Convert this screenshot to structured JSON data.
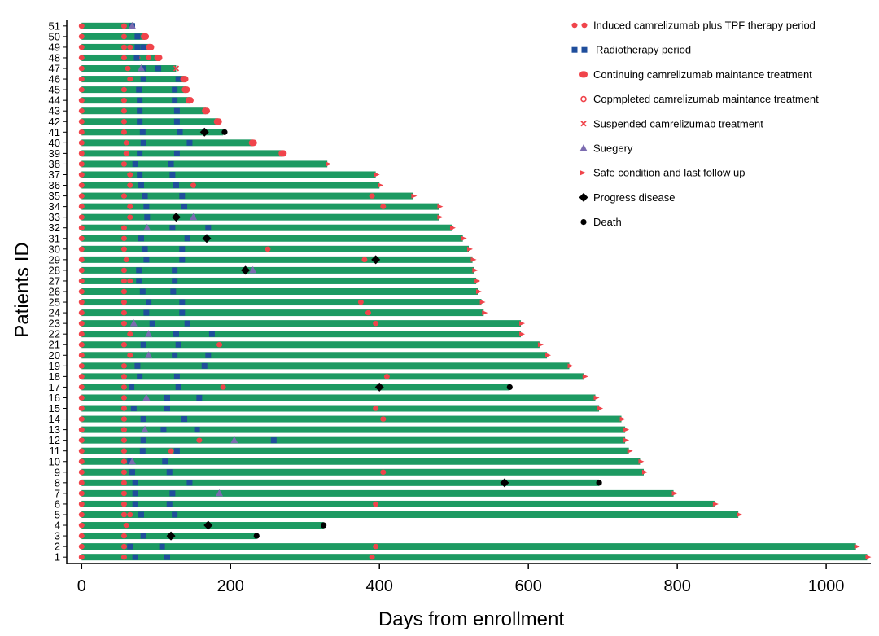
{
  "chart_data": {
    "type": "swimmer",
    "xlabel": "Days from enrollment",
    "ylabel": "Patients ID",
    "xlim": [
      -20,
      1060
    ],
    "ylim": [
      0.4,
      51.6
    ],
    "xticks": [
      0,
      200,
      400,
      600,
      800,
      1000
    ],
    "colors": {
      "bar": "#1d9a62",
      "tpf": "#f0444b",
      "radio": "#1f4e9c",
      "surgery": "#7b6bb0",
      "progress": "#000000",
      "death": "#000000",
      "suspended": "#f0444b"
    },
    "legend": [
      {
        "key": "tpf",
        "label": "Induced camrelizumab plus TPF therapy period"
      },
      {
        "key": "radio",
        "label": "Radiotherapy period"
      },
      {
        "key": "continuing",
        "label": "Continuing camrelizumab maintance treatment"
      },
      {
        "key": "completed",
        "label": "Copmpleted camrelizumab maintance treatment"
      },
      {
        "key": "suspended",
        "label": "Suspended camrelizumab treatment"
      },
      {
        "key": "surgery",
        "label": "Suegery"
      },
      {
        "key": "safe",
        "label": "Safe condition and last follow up"
      },
      {
        "key": "progress",
        "label": "Progress disease"
      },
      {
        "key": "death",
        "label": "Death"
      }
    ],
    "patients": [
      {
        "id": "1",
        "end": 1055,
        "tpf": [
          0,
          57
        ],
        "radio": [
          72,
          115
        ],
        "extra_red": [
          390
        ],
        "end_marker": "safe"
      },
      {
        "id": "2",
        "end": 1040,
        "tpf": [
          0,
          57
        ],
        "radio": [
          65,
          108
        ],
        "extra_red": [
          395
        ],
        "end_marker": "safe"
      },
      {
        "id": "3",
        "end": 235,
        "tpf": [
          0,
          57
        ],
        "radio": [
          83
        ],
        "progress": 120,
        "death": 235
      },
      {
        "id": "4",
        "end": 325,
        "tpf": [
          0,
          60
        ],
        "progress": 170,
        "death": 325
      },
      {
        "id": "5",
        "end": 882,
        "tpf": [
          0,
          57,
          65
        ],
        "radio": [
          80,
          125
        ],
        "end_marker": "safe"
      },
      {
        "id": "6",
        "end": 850,
        "tpf": [
          0,
          57
        ],
        "radio": [
          72,
          118
        ],
        "extra_red": [
          395
        ],
        "end_marker": "safe"
      },
      {
        "id": "7",
        "end": 795,
        "tpf": [
          0,
          57
        ],
        "radio": [
          72,
          122
        ],
        "surgery": [
          185
        ],
        "end_marker": "safe"
      },
      {
        "id": "8",
        "end": 695,
        "tpf": [
          0,
          57
        ],
        "radio": [
          72,
          145
        ],
        "progress": 568,
        "death": 695
      },
      {
        "id": "9",
        "end": 755,
        "tpf": [
          0,
          57
        ],
        "radio": [
          68,
          118
        ],
        "extra_red": [
          405
        ],
        "end_marker": "safe"
      },
      {
        "id": "10",
        "end": 750,
        "tpf": [
          0,
          57
        ],
        "radio": [
          65,
          112
        ],
        "surgery": [
          68
        ],
        "end_marker": "safe"
      },
      {
        "id": "11",
        "end": 735,
        "tpf": [
          0,
          57
        ],
        "radio": [
          82,
          128
        ],
        "extra_red": [
          120
        ],
        "end_marker": "safe"
      },
      {
        "id": "12",
        "end": 730,
        "tpf": [
          0,
          57
        ],
        "radio": [
          83,
          258
        ],
        "surgery": [
          205
        ],
        "extra_red": [
          158
        ],
        "end_marker": "safe"
      },
      {
        "id": "13",
        "end": 730,
        "tpf": [
          0,
          57
        ],
        "radio": [
          110,
          155
        ],
        "surgery": [
          85
        ],
        "end_marker": "safe"
      },
      {
        "id": "14",
        "end": 725,
        "tpf": [
          0,
          57
        ],
        "radio": [
          83,
          138
        ],
        "extra_red": [
          405
        ],
        "end_marker": "safe"
      },
      {
        "id": "15",
        "end": 695,
        "tpf": [
          0,
          57
        ],
        "radio": [
          70,
          115
        ],
        "extra_red": [
          395
        ],
        "end_marker": "safe"
      },
      {
        "id": "16",
        "end": 690,
        "tpf": [
          0,
          57
        ],
        "radio": [
          115,
          158
        ],
        "surgery": [
          87
        ],
        "end_marker": "safe"
      },
      {
        "id": "17",
        "end": 575,
        "tpf": [
          0,
          57,
          190
        ],
        "radio": [
          67,
          130
        ],
        "progress": 400,
        "death": 575
      },
      {
        "id": "18",
        "end": 675,
        "tpf": [
          0,
          57
        ],
        "radio": [
          78,
          128
        ],
        "extra_red": [
          410
        ],
        "end_marker": "safe"
      },
      {
        "id": "19",
        "end": 655,
        "tpf": [
          0,
          57
        ],
        "radio": [
          75,
          165
        ],
        "end_marker": "safe"
      },
      {
        "id": "20",
        "end": 625,
        "tpf": [
          0,
          65
        ],
        "radio": [
          125,
          170
        ],
        "surgery": [
          90
        ],
        "end_marker": "safe"
      },
      {
        "id": "21",
        "end": 615,
        "tpf": [
          0,
          57
        ],
        "radio": [
          83,
          130
        ],
        "extra_red": [
          185
        ],
        "end_marker": "safe"
      },
      {
        "id": "22",
        "end": 590,
        "tpf": [
          0,
          65
        ],
        "radio": [
          127,
          175
        ],
        "surgery": [
          90
        ],
        "end_marker": "safe"
      },
      {
        "id": "23",
        "end": 590,
        "tpf": [
          0,
          57
        ],
        "radio": [
          95,
          142
        ],
        "surgery": [
          70
        ],
        "extra_red": [
          395
        ],
        "end_marker": "safe"
      },
      {
        "id": "24",
        "end": 540,
        "tpf": [
          0,
          57
        ],
        "radio": [
          87,
          135
        ],
        "extra_red": [
          385
        ],
        "end_marker": "safe"
      },
      {
        "id": "25",
        "end": 537,
        "tpf": [
          0,
          57
        ],
        "radio": [
          90,
          135
        ],
        "extra_red": [
          375
        ],
        "end_marker": "safe"
      },
      {
        "id": "26",
        "end": 532,
        "tpf": [
          0,
          57
        ],
        "radio": [
          82,
          123
        ],
        "end_marker": "safe"
      },
      {
        "id": "27",
        "end": 530,
        "tpf": [
          0,
          57,
          65
        ],
        "radio": [
          77,
          125
        ],
        "end_marker": "safe"
      },
      {
        "id": "28",
        "end": 527,
        "tpf": [
          0,
          57
        ],
        "radio": [
          77,
          125
        ],
        "surgery": [
          230
        ],
        "progress": 220,
        "end_marker": "safe"
      },
      {
        "id": "29",
        "end": 525,
        "tpf": [
          0,
          60
        ],
        "radio": [
          87,
          135
        ],
        "extra_red": [
          380
        ],
        "progress": 395,
        "end_marker": "safe"
      },
      {
        "id": "30",
        "end": 520,
        "tpf": [
          0,
          57
        ],
        "radio": [
          85,
          135
        ],
        "extra_red": [
          250
        ],
        "end_marker": "safe"
      },
      {
        "id": "31",
        "end": 512,
        "tpf": [
          0,
          57
        ],
        "radio": [
          80,
          142
        ],
        "progress": 168,
        "end_marker": "safe"
      },
      {
        "id": "32",
        "end": 497,
        "tpf": [
          0,
          57
        ],
        "radio": [
          122,
          170
        ],
        "surgery": [
          88
        ],
        "end_marker": "safe"
      },
      {
        "id": "33",
        "end": 480,
        "tpf": [
          0,
          65
        ],
        "radio": [
          88
        ],
        "surgery": [
          150
        ],
        "progress": 127,
        "end_marker": "safe"
      },
      {
        "id": "34",
        "end": 480,
        "tpf": [
          0,
          65
        ],
        "radio": [
          87,
          138
        ],
        "extra_red": [
          405
        ],
        "end_marker": "safe"
      },
      {
        "id": "35",
        "end": 445,
        "tpf": [
          0,
          57
        ],
        "radio": [
          85,
          135
        ],
        "extra_red": [
          390
        ],
        "end_marker": "safe"
      },
      {
        "id": "36",
        "end": 400,
        "tpf": [
          0,
          65
        ],
        "radio": [
          80,
          127
        ],
        "extra_red": [
          150
        ],
        "end_marker": "safe"
      },
      {
        "id": "37",
        "end": 395,
        "tpf": [
          0,
          65
        ],
        "radio": [
          78,
          122
        ],
        "end_marker": "safe"
      },
      {
        "id": "38",
        "end": 330,
        "tpf": [
          0,
          57
        ],
        "radio": [
          72,
          120
        ],
        "end_marker": "safe"
      },
      {
        "id": "39",
        "end": 270,
        "tpf": [
          0,
          60
        ],
        "radio": [
          78,
          128
        ],
        "end_marker": "continuing"
      },
      {
        "id": "40",
        "end": 230,
        "tpf": [
          0,
          60
        ],
        "radio": [
          83,
          145
        ],
        "end_marker": "continuing"
      },
      {
        "id": "41",
        "end": 190,
        "tpf": [
          0,
          57
        ],
        "radio": [
          82,
          132
        ],
        "progress": 165,
        "death": 192
      },
      {
        "id": "42",
        "end": 183,
        "tpf": [
          0,
          57
        ],
        "radio": [
          78,
          128
        ],
        "end_marker": "continuing"
      },
      {
        "id": "43",
        "end": 167,
        "tpf": [
          0,
          57
        ],
        "radio": [
          78,
          128
        ],
        "end_marker": "continuing"
      },
      {
        "id": "44",
        "end": 145,
        "tpf": [
          0,
          57
        ],
        "radio": [
          78,
          125
        ],
        "end_marker": "continuing"
      },
      {
        "id": "45",
        "end": 140,
        "tpf": [
          0,
          57
        ],
        "radio": [
          77,
          125
        ],
        "end_marker": "continuing"
      },
      {
        "id": "46",
        "end": 138,
        "tpf": [
          0,
          65
        ],
        "radio": [
          83,
          130
        ],
        "end_marker": "continuing"
      },
      {
        "id": "47",
        "end": 127,
        "tpf": [
          0,
          62
        ],
        "radio": [
          83,
          103
        ],
        "surgery": [
          80
        ],
        "end_marker": "suspended"
      },
      {
        "id": "48",
        "end": 103,
        "tpf": [
          0,
          57,
          75,
          90
        ],
        "radio": [
          74
        ],
        "end_marker": "continuing"
      },
      {
        "id": "49",
        "end": 92,
        "tpf": [
          0,
          57,
          65
        ],
        "radio": [
          75,
          83
        ],
        "end_marker": "continuing"
      },
      {
        "id": "50",
        "end": 85,
        "tpf": [
          0,
          57
        ],
        "radio": [
          75
        ],
        "end_marker": "continuing"
      },
      {
        "id": "51",
        "end": 70,
        "tpf": [
          0,
          57
        ],
        "radio": [
          68
        ],
        "surgery": [
          68
        ]
      }
    ]
  }
}
